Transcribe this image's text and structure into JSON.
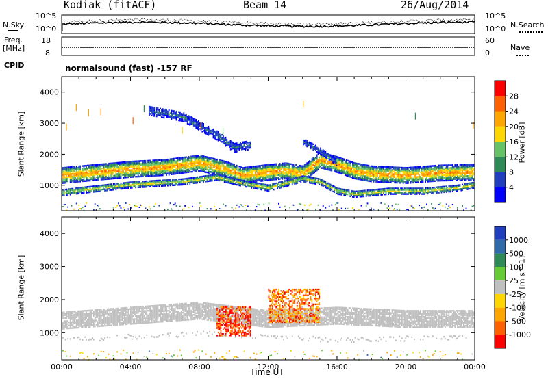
{
  "header": {
    "station": "Kodiak (fitACF)",
    "beam": "Beam 14",
    "date": "26/Aug/2014"
  },
  "noise_panel": {
    "left_label": "N.Sky",
    "right_label": "N.Search",
    "left_ticks": [
      "10^5",
      "10^0"
    ],
    "right_ticks": [
      "10^5",
      "10^0"
    ]
  },
  "freq_panel": {
    "left_label_1": "Freq.",
    "left_label_2": "[MHz]",
    "left_ticks": [
      "18",
      "8"
    ],
    "right_label": "Nave",
    "right_ticks": [
      "60",
      "0"
    ]
  },
  "cpid": {
    "label": "CPID",
    "program": "normalsound (fast) -157 RF"
  },
  "colors": {
    "background": "#ffffff",
    "power_scale": [
      "#0000ff",
      "#1f3fbf",
      "#2e8b57",
      "#66c266",
      "#ffd700",
      "#ffa500",
      "#ff6000",
      "#ff0000"
    ],
    "velocity_scale": [
      "#1f3fbf",
      "#2e6ba8",
      "#2e8b57",
      "#66cc33",
      "#c0c0c0",
      "#ffd700",
      "#ffa500",
      "#ff6000",
      "#ff0000"
    ]
  },
  "chart_data": [
    {
      "type": "heatmap",
      "name": "power",
      "ylabel": "Slant Range [km]",
      "y_ticks": [
        "1000",
        "2000",
        "3000",
        "4000"
      ],
      "ylim": [
        180,
        4500
      ],
      "xlim_hours": [
        0,
        24
      ],
      "colorbar": {
        "label": "Power [dB]",
        "ticks": [
          "4",
          "8",
          "12",
          "16",
          "20",
          "24",
          "28"
        ],
        "range": [
          0,
          32
        ]
      },
      "bands": [
        {
          "t": [
            0,
            2,
            4,
            6,
            8,
            9.5,
            10.5,
            12,
            13,
            14,
            15,
            16,
            17,
            18,
            20,
            22,
            24
          ],
          "center_km": [
            1300,
            1400,
            1500,
            1560,
            1700,
            1500,
            1300,
            1400,
            1450,
            1350,
            1800,
            1650,
            1450,
            1350,
            1300,
            1380,
            1400
          ],
          "width_km": 500,
          "peak_db": 24
        },
        {
          "t": [
            0,
            1,
            4,
            7,
            9,
            10.5,
            12,
            14,
            15,
            16,
            17,
            19,
            21,
            23,
            24
          ],
          "center_km": [
            750,
            820,
            1000,
            1100,
            1250,
            1050,
            900,
            1200,
            1100,
            800,
            700,
            800,
            800,
            900,
            1000
          ],
          "width_km": 200,
          "peak_db": 18
        },
        {
          "t": [
            5,
            7,
            9,
            10,
            11
          ],
          "center_km": [
            3400,
            3200,
            2600,
            2200,
            2300
          ],
          "width_km": 300,
          "peak_db": 8
        },
        {
          "t": [
            14,
            15,
            16
          ],
          "center_km": [
            2400,
            2100,
            1700
          ],
          "width_km": 200,
          "peak_db": 8
        }
      ]
    },
    {
      "type": "heatmap",
      "name": "velocity",
      "ylabel": "Slant Range [km]",
      "y_ticks": [
        "1000",
        "2000",
        "3000",
        "4000"
      ],
      "ylim": [
        180,
        4500
      ],
      "xlim_hours": [
        0,
        24
      ],
      "x_ticks": [
        "00:00",
        "04:00",
        "08:00",
        "12:00",
        "16:00",
        "20:00",
        "00:00"
      ],
      "xlabel": "Time UT",
      "colorbar": {
        "label": "Velocity [m s^-1]",
        "ticks": [
          "1000",
          "500",
          "100",
          "25",
          "-25",
          "-100",
          "-500",
          "-1000"
        ]
      },
      "ground_scatter_bands": [
        {
          "t": [
            0,
            4,
            8,
            12,
            16,
            20,
            24
          ],
          "center_km": [
            1350,
            1500,
            1650,
            1400,
            1500,
            1400,
            1400
          ],
          "width_km": 500
        }
      ],
      "ionospheric_patches": [
        {
          "t_range": [
            9,
            11
          ],
          "range_km": [
            900,
            1800
          ],
          "velocity": -500
        },
        {
          "t_range": [
            12,
            15
          ],
          "range_km": [
            1300,
            2300
          ],
          "velocity": -300
        }
      ]
    }
  ]
}
